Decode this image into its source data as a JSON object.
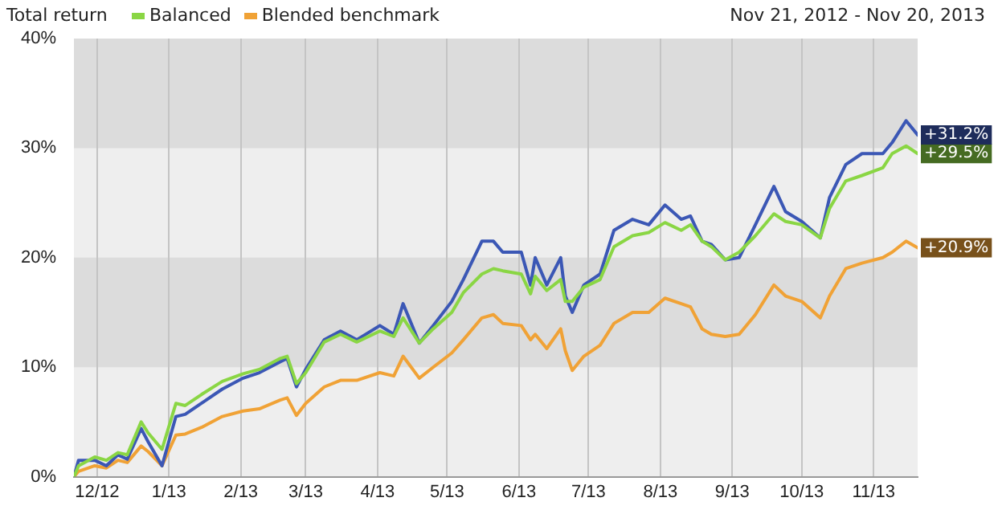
{
  "chart_data": {
    "type": "line",
    "title": "Total return",
    "subtitle": "Nov 21, 2012 - Nov 20, 2013",
    "x": [
      "2012-11-21",
      "2012-11-23",
      "2012-11-30",
      "2012-12-05",
      "2012-12-10",
      "2012-12-14",
      "2012-12-20",
      "2012-12-23",
      "2012-12-29",
      "2013-01-04",
      "2013-01-08",
      "2013-01-15",
      "2013-01-24",
      "2013-02-02",
      "2013-02-09",
      "2013-02-18",
      "2013-02-21",
      "2013-02-25",
      "2013-03-01",
      "2013-03-09",
      "2013-03-16",
      "2013-03-23",
      "2013-04-02",
      "2013-04-08",
      "2013-04-12",
      "2013-04-19",
      "2013-04-25",
      "2013-05-03",
      "2013-05-08",
      "2013-05-16",
      "2013-05-21",
      "2013-05-25",
      "2013-06-02",
      "2013-06-06",
      "2013-06-08",
      "2013-06-13",
      "2013-06-19",
      "2013-06-21",
      "2013-06-24",
      "2013-06-29",
      "2013-07-06",
      "2013-07-12",
      "2013-07-20",
      "2013-07-27",
      "2013-08-03",
      "2013-08-10",
      "2013-08-14",
      "2013-08-19",
      "2013-08-23",
      "2013-08-29",
      "2013-09-04",
      "2013-09-11",
      "2013-09-19",
      "2013-09-24",
      "2013-10-01",
      "2013-10-09",
      "2013-10-13",
      "2013-10-20",
      "2013-10-27",
      "2013-11-05",
      "2013-11-09",
      "2013-11-15",
      "2013-11-20"
    ],
    "series": [
      {
        "name": "Balanced",
        "color": "#8ad644",
        "values": [
          0,
          1,
          1.8,
          1.5,
          2.2,
          2,
          5,
          4,
          2.5,
          6.7,
          6.5,
          7.5,
          8.7,
          9.4,
          9.8,
          10.8,
          11,
          8.5,
          9.5,
          12.3,
          13,
          12.3,
          13.3,
          12.8,
          14.5,
          12.2,
          13.5,
          15,
          16.8,
          18.5,
          19,
          18.8,
          18.5,
          16.7,
          18.3,
          17,
          18,
          16,
          16,
          17.3,
          18,
          21,
          22,
          22.3,
          23.2,
          22.5,
          23,
          21.5,
          21,
          19.8,
          20.5,
          22,
          24,
          23.3,
          23,
          21.8,
          24.5,
          27,
          27.5,
          28.2,
          29.5,
          30.2,
          29.5
        ],
        "value_labels": [
          null,
          null,
          null,
          null,
          null,
          null,
          null,
          null,
          null,
          null,
          null,
          null,
          null,
          null,
          null,
          null,
          null,
          null,
          null,
          null,
          null,
          null,
          null,
          null,
          null,
          null,
          null,
          null,
          null,
          null,
          null,
          null,
          null,
          null,
          null,
          null,
          null,
          null,
          null,
          null,
          null,
          null,
          null,
          null,
          null,
          null,
          null,
          null,
          null,
          null,
          null,
          null,
          null,
          null,
          null,
          null,
          null,
          null,
          null,
          null,
          null,
          null,
          "+29.5%"
        ]
      },
      {
        "color": "#3b57b5",
        "values": [
          0,
          1.5,
          1.5,
          1,
          2,
          1.6,
          4.4,
          3.2,
          1,
          5.5,
          5.7,
          6.7,
          8,
          9,
          9.5,
          10.5,
          10.8,
          8.2,
          9.8,
          12.5,
          13.3,
          12.5,
          13.8,
          13,
          15.8,
          12.2,
          13.8,
          16,
          18,
          21.5,
          21.5,
          20.5,
          20.5,
          17.5,
          20,
          17.5,
          20,
          16.5,
          15,
          17.5,
          18.5,
          22.5,
          23.5,
          23,
          24.8,
          23.5,
          23.8,
          21.5,
          21.2,
          19.8,
          20,
          23,
          26.5,
          24.2,
          23.3,
          21.8,
          25.5,
          28.5,
          29.5,
          29.5,
          30.5,
          32.5,
          31.2
        ],
        "value_labels": [
          null,
          null,
          null,
          null,
          null,
          null,
          null,
          null,
          null,
          null,
          null,
          null,
          null,
          null,
          null,
          null,
          null,
          null,
          null,
          null,
          null,
          null,
          null,
          null,
          null,
          null,
          null,
          null,
          null,
          null,
          null,
          null,
          null,
          null,
          null,
          null,
          null,
          null,
          null,
          null,
          null,
          null,
          null,
          null,
          null,
          null,
          null,
          null,
          null,
          null,
          null,
          null,
          null,
          null,
          null,
          null,
          null,
          null,
          null,
          null,
          null,
          null,
          "+31.2%"
        ]
      },
      {
        "name": "Blended benchmark",
        "color": "#f0a236",
        "values": [
          0,
          0.5,
          1,
          0.8,
          1.5,
          1.3,
          2.8,
          2.3,
          1,
          3.8,
          3.9,
          4.5,
          5.5,
          6,
          6.2,
          7,
          7.2,
          5.6,
          6.7,
          8.2,
          8.8,
          8.8,
          9.5,
          9.2,
          11,
          9,
          10,
          11.3,
          12.5,
          14.5,
          14.8,
          14,
          13.8,
          12.5,
          13,
          11.7,
          13.5,
          11.5,
          9.7,
          11,
          12,
          14,
          15,
          15,
          16.3,
          15.8,
          15.5,
          13.5,
          13,
          12.8,
          13,
          14.8,
          17.5,
          16.5,
          16,
          14.5,
          16.5,
          19,
          19.5,
          20,
          20.5,
          21.5,
          20.9
        ],
        "value_labels": [
          null,
          null,
          null,
          null,
          null,
          null,
          null,
          null,
          null,
          null,
          null,
          null,
          null,
          null,
          null,
          null,
          null,
          null,
          null,
          null,
          null,
          null,
          null,
          null,
          null,
          null,
          null,
          null,
          null,
          null,
          null,
          null,
          null,
          null,
          null,
          null,
          null,
          null,
          null,
          null,
          null,
          null,
          null,
          null,
          null,
          null,
          null,
          null,
          null,
          null,
          null,
          null,
          null,
          null,
          null,
          null,
          null,
          null,
          null,
          null,
          null,
          null,
          "+20.9%"
        ]
      }
    ],
    "xlim": [
      "2012-11-21",
      "2013-11-20"
    ],
    "xticks": [
      {
        "value": "2012-12-01",
        "label": "12/12"
      },
      {
        "value": "2013-01-01",
        "label": "1/13"
      },
      {
        "value": "2013-02-01",
        "label": "2/13"
      },
      {
        "value": "2013-03-01",
        "label": "3/13"
      },
      {
        "value": "2013-04-01",
        "label": "4/13"
      },
      {
        "value": "2013-05-01",
        "label": "5/13"
      },
      {
        "value": "2013-06-01",
        "label": "6/13"
      },
      {
        "value": "2013-07-01",
        "label": "7/13"
      },
      {
        "value": "2013-08-01",
        "label": "8/13"
      },
      {
        "value": "2013-09-01",
        "label": "9/13"
      },
      {
        "value": "2013-10-01",
        "label": "10/13"
      },
      {
        "value": "2013-11-01",
        "label": "11/13"
      }
    ],
    "ylim": [
      0,
      40
    ],
    "yticks": [
      {
        "value": 0,
        "label": "0%"
      },
      {
        "value": 10,
        "label": "10%"
      },
      {
        "value": 20,
        "label": "20%"
      },
      {
        "value": 30,
        "label": "30%"
      },
      {
        "value": 40,
        "label": "40%"
      }
    ],
    "grid": true,
    "legend": "top",
    "marker": "none",
    "line_style": "solid"
  }
}
